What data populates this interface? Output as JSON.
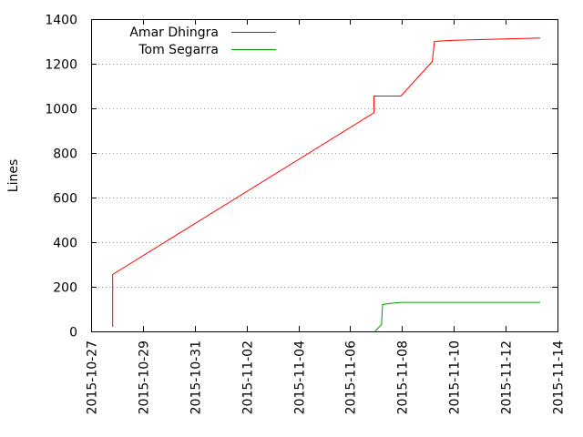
{
  "chart_data": {
    "type": "line",
    "title": "",
    "xlabel": "",
    "ylabel": "Lines",
    "ylim": [
      0,
      1400
    ],
    "xlim": [
      "2015-10-27",
      "2015-11-14"
    ],
    "yticks": [
      0,
      200,
      400,
      600,
      800,
      1000,
      1200,
      1400
    ],
    "xticks": [
      "2015-10-27",
      "2015-10-29",
      "2015-10-31",
      "2015-11-02",
      "2015-11-04",
      "2015-11-06",
      "2015-11-08",
      "2015-11-10",
      "2015-11-12",
      "2015-11-14"
    ],
    "grid": true,
    "legend_position": "top-left",
    "series": [
      {
        "name": "Amar Dhingra",
        "color": "#ff0000",
        "points": [
          [
            "2015-10-27 20:00",
            20
          ],
          [
            "2015-10-27 20:00",
            255
          ],
          [
            "2015-11-06 22:00",
            980
          ],
          [
            "2015-11-06 22:00",
            1055
          ],
          [
            "2015-11-07 23:00",
            1055
          ],
          [
            "2015-11-09 04:00",
            1210
          ],
          [
            "2015-11-09 06:00",
            1300
          ],
          [
            "2015-11-10 00:00",
            1305
          ],
          [
            "2015-11-13 08:00",
            1315
          ]
        ]
      },
      {
        "name": "Tom Segarra",
        "color": "#00a000",
        "points": [
          [
            "2015-11-06 23:00",
            0
          ],
          [
            "2015-11-07 05:00",
            30
          ],
          [
            "2015-11-07 06:00",
            120
          ],
          [
            "2015-11-07 12:00",
            125
          ],
          [
            "2015-11-07 23:00",
            130
          ],
          [
            "2015-11-13 08:00",
            130
          ]
        ]
      }
    ]
  }
}
